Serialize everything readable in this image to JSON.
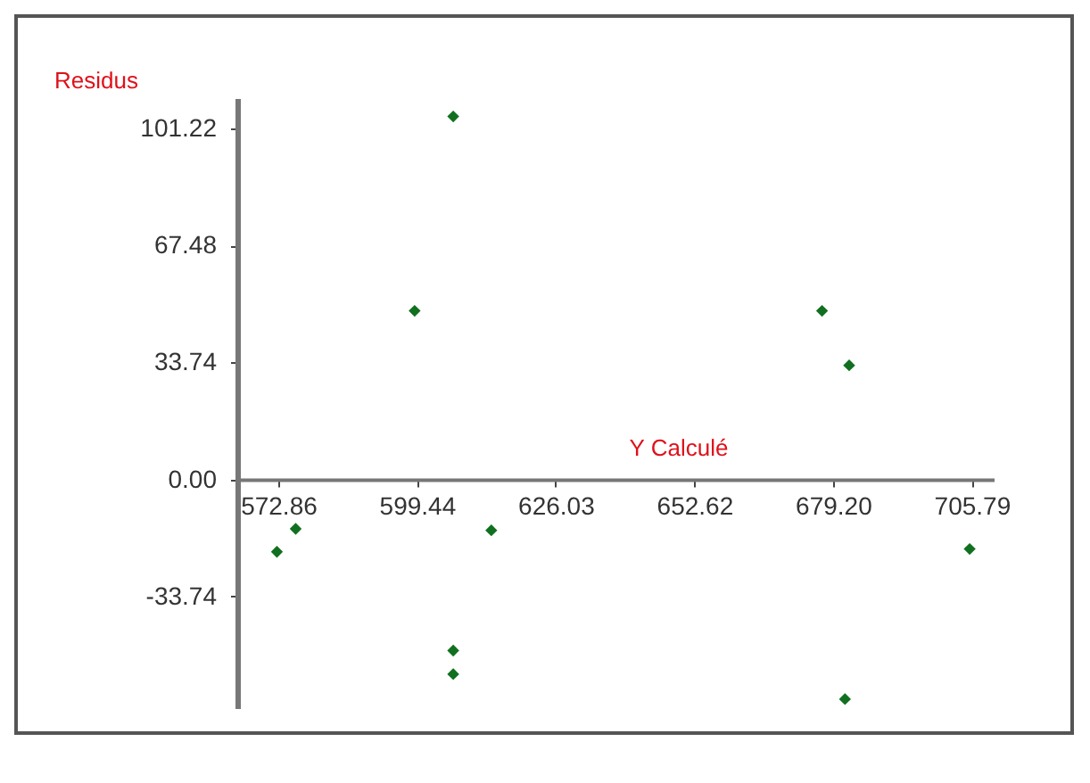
{
  "chart_data": {
    "type": "scatter",
    "xlabel": "Y Calculé",
    "ylabel": "Residus",
    "x": [
      606.4,
      599.0,
      677.1,
      682.3,
      572.6,
      576.2,
      613.7,
      606.4,
      606.4,
      681.5,
      705.4
    ],
    "series": [
      {
        "color": "#11701f",
        "values": [
          104.7,
          48.6,
          48.6,
          32.9,
          -20.9,
          -14.3,
          -14.7,
          -49.4,
          -56.2,
          -63.4,
          -20.1
        ]
      }
    ],
    "xlim": [
      565,
      710
    ],
    "xticks": [
      572.86,
      599.44,
      626.03,
      652.62,
      {
        "value": 679.2,
        "label": "679.20"
      },
      705.79
    ],
    "ylim": [
      -66,
      110
    ],
    "yticks": [
      -33.74,
      {
        "value": 0,
        "label": "0.00"
      },
      33.74,
      67.48,
      101.22
    ],
    "marker": "diamond",
    "grid": false,
    "legend": false
  }
}
